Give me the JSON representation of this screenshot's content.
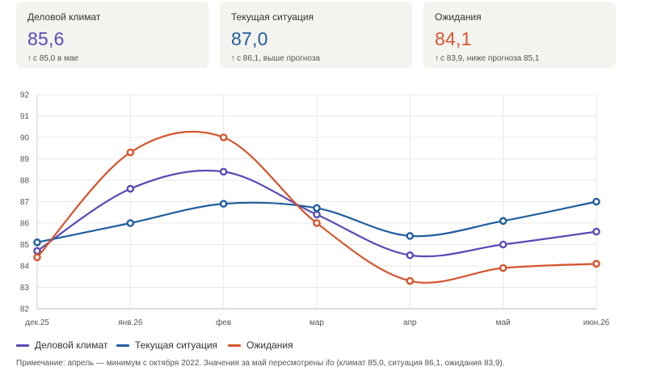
{
  "cards": [
    {
      "title": "Деловой климат",
      "value": "85,6",
      "color": "#5a4bb5",
      "subtitle": "с 85,0 в мае",
      "arrow": "↑"
    },
    {
      "title": "Текущая ситуация",
      "value": "87,0",
      "color": "#1f5e9e",
      "subtitle": "с 86,1, выше прогноза",
      "arrow": "↑"
    },
    {
      "title": "Ожидания",
      "value": "84,1",
      "color": "#d4552f",
      "subtitle": "с 83,9, ниже прогноза 85,1",
      "arrow": "↑"
    }
  ],
  "chart_data": {
    "type": "line",
    "categories": [
      "дек.25",
      "янв.26",
      "фев",
      "мар",
      "апр",
      "май",
      "июн.26"
    ],
    "ylim": [
      82,
      92
    ],
    "yticks": [
      82,
      83,
      84,
      85,
      86,
      87,
      88,
      89,
      90,
      91,
      92
    ],
    "grid": true,
    "legend_position": "bottom-left",
    "series": [
      {
        "name": "Деловой климат",
        "color": "#5a4bb5",
        "values": [
          84.7,
          87.6,
          88.4,
          86.4,
          84.5,
          85.0,
          85.6
        ]
      },
      {
        "name": "Текущая ситуация",
        "color": "#1f5e9e",
        "values": [
          85.1,
          86.0,
          86.9,
          86.7,
          85.4,
          86.1,
          87.0
        ]
      },
      {
        "name": "Ожидания",
        "color": "#d4552f",
        "values": [
          84.4,
          89.3,
          90.0,
          86.0,
          83.3,
          83.9,
          84.1
        ]
      }
    ]
  },
  "note": "Примечание: апрель — минимум с октября 2022. Значения за май пересмотрены ifo (климат 85,0, ситуация 86,1, ожидания 83,9)."
}
